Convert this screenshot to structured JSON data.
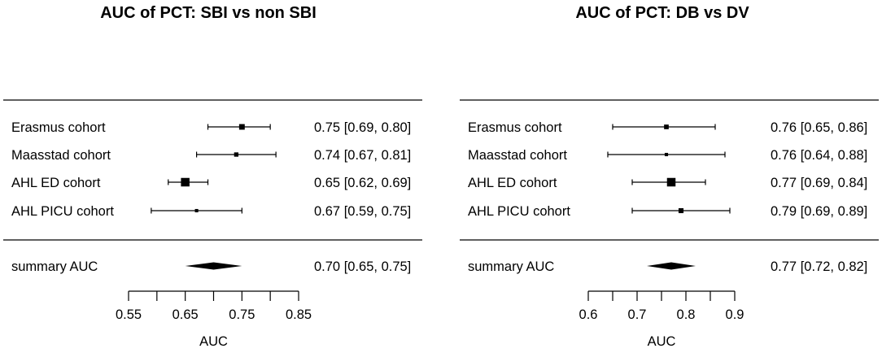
{
  "chart_data": [
    {
      "type": "forest",
      "title": "AUC of PCT: SBI vs non SBI",
      "xlabel": "AUC",
      "xlim": [
        0.55,
        0.85
      ],
      "ticks": [
        0.55,
        0.6,
        0.65,
        0.7,
        0.75,
        0.8,
        0.85
      ],
      "tick_labels": [
        "0.55",
        "",
        "0.65",
        "",
        "0.75",
        "",
        "0.85"
      ],
      "studies": [
        {
          "label": "Erasmus cohort",
          "estimate": 0.75,
          "lower": 0.69,
          "upper": 0.8,
          "text": "0.75 [0.69, 0.80]",
          "weight": 0.55
        },
        {
          "label": "Maasstad cohort",
          "estimate": 0.74,
          "lower": 0.67,
          "upper": 0.81,
          "text": "0.74 [0.67, 0.81]",
          "weight": 0.35
        },
        {
          "label": "AHL ED cohort",
          "estimate": 0.65,
          "lower": 0.62,
          "upper": 0.69,
          "text": "0.65 [0.62, 0.69]",
          "weight": 1.0
        },
        {
          "label": "AHL PICU cohort",
          "estimate": 0.67,
          "lower": 0.59,
          "upper": 0.75,
          "text": "0.67 [0.59, 0.75]",
          "weight": 0.2
        }
      ],
      "summary": {
        "label": "summary AUC",
        "estimate": 0.7,
        "lower": 0.65,
        "upper": 0.75,
        "text": "0.70 [0.65, 0.75]"
      }
    },
    {
      "type": "forest",
      "title": "AUC of PCT: DB vs DV",
      "xlabel": "AUC",
      "xlim": [
        0.6,
        0.9
      ],
      "ticks": [
        0.6,
        0.65,
        0.7,
        0.75,
        0.8,
        0.85,
        0.9
      ],
      "tick_labels": [
        "0.6",
        "",
        "0.7",
        "",
        "0.8",
        "",
        "0.9"
      ],
      "studies": [
        {
          "label": "Erasmus cohort",
          "estimate": 0.76,
          "lower": 0.65,
          "upper": 0.86,
          "text": "0.76 [0.65, 0.86]",
          "weight": 0.4
        },
        {
          "label": "Maasstad cohort",
          "estimate": 0.76,
          "lower": 0.64,
          "upper": 0.88,
          "text": "0.76 [0.64, 0.88]",
          "weight": 0.2
        },
        {
          "label": "AHL ED cohort",
          "estimate": 0.77,
          "lower": 0.69,
          "upper": 0.84,
          "text": "0.77 [0.69, 0.84]",
          "weight": 1.0
        },
        {
          "label": "AHL PICU cohort",
          "estimate": 0.79,
          "lower": 0.69,
          "upper": 0.89,
          "text": "0.79 [0.69, 0.89]",
          "weight": 0.45
        }
      ],
      "summary": {
        "label": "summary AUC",
        "estimate": 0.77,
        "lower": 0.72,
        "upper": 0.82,
        "text": "0.77 [0.72, 0.82]"
      }
    }
  ]
}
